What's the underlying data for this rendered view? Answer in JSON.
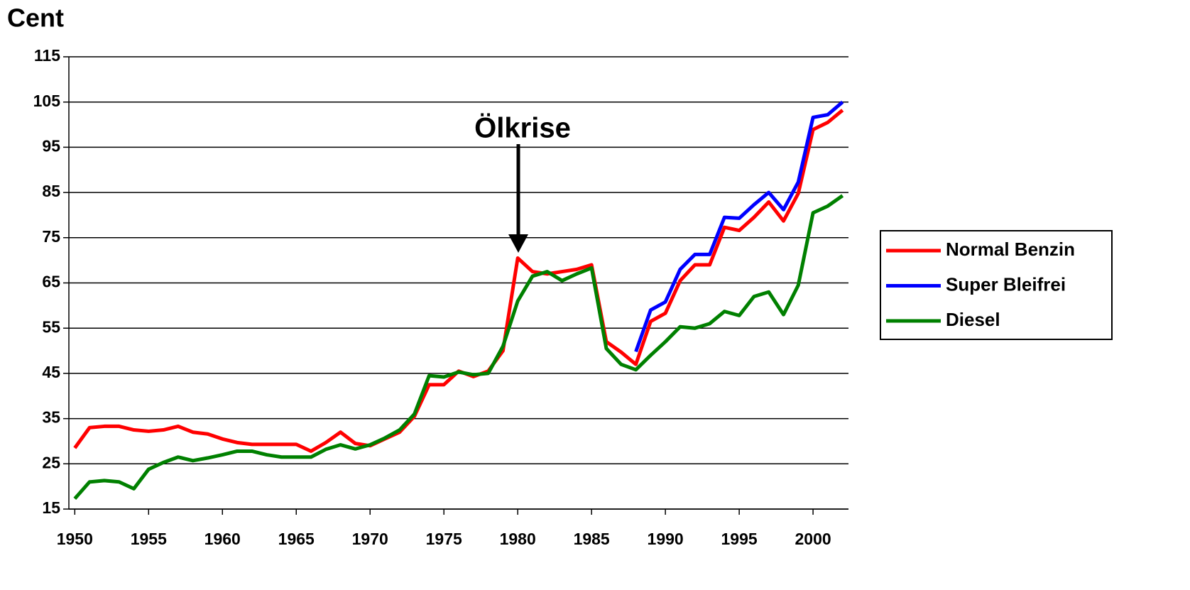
{
  "chart_data": {
    "type": "line",
    "title": "Cent",
    "annotation": "Ölkrise",
    "x": [
      1950,
      1951,
      1952,
      1953,
      1954,
      1955,
      1956,
      1957,
      1958,
      1959,
      1960,
      1961,
      1962,
      1963,
      1964,
      1965,
      1966,
      1967,
      1968,
      1969,
      1970,
      1971,
      1972,
      1973,
      1974,
      1975,
      1976,
      1977,
      1978,
      1979,
      1980,
      1981,
      1982,
      1983,
      1984,
      1985,
      1986,
      1987,
      1988,
      1989,
      1990,
      1991,
      1992,
      1993,
      1994,
      1995,
      1996,
      1997,
      1998,
      1999,
      2000,
      2001,
      2002
    ],
    "series": [
      {
        "name": "Normal Benzin",
        "color": "#ff0000",
        "values": [
          28.5,
          33,
          33.3,
          33.3,
          32.5,
          32.2,
          32.5,
          33.3,
          32,
          31.6,
          30.5,
          29.7,
          29.3,
          29.3,
          29.3,
          29.3,
          27.8,
          29.7,
          32,
          29.5,
          29,
          30.5,
          32,
          35.5,
          42.5,
          42.5,
          45.5,
          44.3,
          45.5,
          50,
          70.5,
          67.5,
          67,
          67.5,
          68,
          69,
          52,
          49.7,
          47,
          56.5,
          58.3,
          65.5,
          69,
          69,
          77.3,
          76.6,
          79.5,
          82.9,
          78.7,
          84.8,
          98.9,
          100.5,
          103.2
        ]
      },
      {
        "name": "Super Bleifrei",
        "color": "#0000ff",
        "values": [
          null,
          null,
          null,
          null,
          null,
          null,
          null,
          null,
          null,
          null,
          null,
          null,
          null,
          null,
          null,
          null,
          null,
          null,
          null,
          null,
          null,
          null,
          null,
          null,
          null,
          null,
          null,
          null,
          null,
          null,
          null,
          null,
          null,
          null,
          null,
          null,
          null,
          null,
          49.8,
          59,
          60.8,
          68,
          71.3,
          71.3,
          79.5,
          79.3,
          82.3,
          85,
          81.2,
          87.3,
          101.6,
          102.2,
          105
        ]
      },
      {
        "name": "Diesel",
        "color": "#008000",
        "values": [
          17.3,
          21,
          21.3,
          21,
          19.5,
          23.8,
          25.3,
          26.5,
          25.7,
          26.3,
          27,
          27.8,
          27.8,
          27,
          26.5,
          26.5,
          26.5,
          28.2,
          29.2,
          28.3,
          29.2,
          30.7,
          32.5,
          36,
          44.5,
          44.2,
          45.3,
          44.7,
          45,
          51,
          61,
          66.5,
          67.5,
          65.5,
          67,
          68.3,
          50.5,
          47,
          45.8,
          49,
          52,
          55.3,
          55,
          56,
          58.7,
          57.8,
          62,
          63,
          58,
          64.5,
          80.5,
          82,
          84.3
        ]
      }
    ],
    "xlim": [
      1949.6,
      2002.4
    ],
    "xticks": [
      1950,
      1955,
      1960,
      1965,
      1970,
      1975,
      1980,
      1985,
      1990,
      1995,
      2000
    ],
    "ylim": [
      15,
      115
    ],
    "yticks": [
      15,
      25,
      35,
      45,
      55,
      65,
      75,
      85,
      95,
      105,
      115
    ],
    "grid": true,
    "legend": "right"
  }
}
